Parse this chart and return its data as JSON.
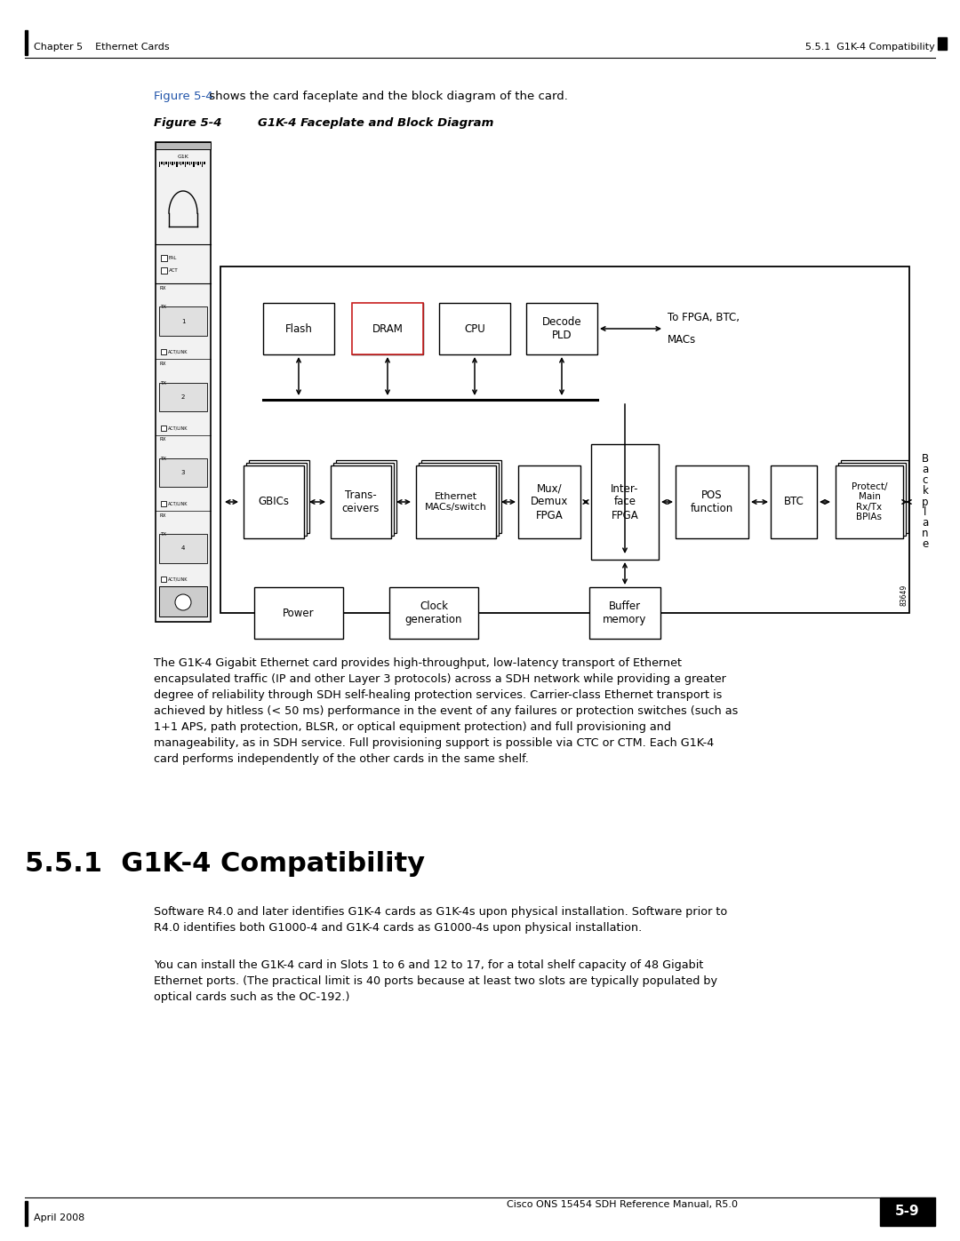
{
  "header_left": "Chapter 5    Ethernet Cards",
  "header_right": "5.5.1  G1K-4 Compatibility",
  "footer_left": "April 2008",
  "footer_center": "Cisco ONS 15454 SDH Reference Manual, R5.0",
  "footer_page": "5-9",
  "figure_label": "Figure 5-4",
  "figure_title": "G1K-4 Faceplate and Block Diagram",
  "section_title": "5.5.1  G1K-4 Compatibility",
  "bg_color": "#ffffff",
  "blue_color": "#2255aa"
}
